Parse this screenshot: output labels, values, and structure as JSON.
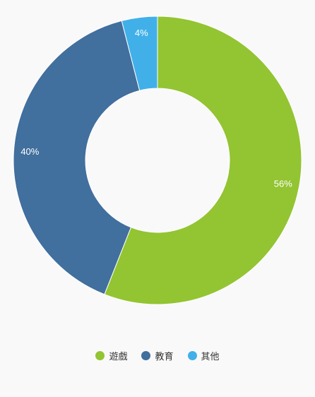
{
  "chart_data": {
    "type": "pie",
    "variant": "donut",
    "title": "",
    "categories": [
      "遊戲",
      "教育",
      "其他"
    ],
    "values": [
      56,
      40,
      4
    ],
    "labels": [
      "56%",
      "40%",
      "4%"
    ],
    "colors": [
      "#93c432",
      "#416f9e",
      "#41b0e9"
    ],
    "legend_position": "bottom"
  },
  "legend": {
    "items": [
      {
        "label": "遊戲",
        "color": "#93c432"
      },
      {
        "label": "教育",
        "color": "#416f9e"
      },
      {
        "label": "其他",
        "color": "#41b0e9"
      }
    ]
  }
}
